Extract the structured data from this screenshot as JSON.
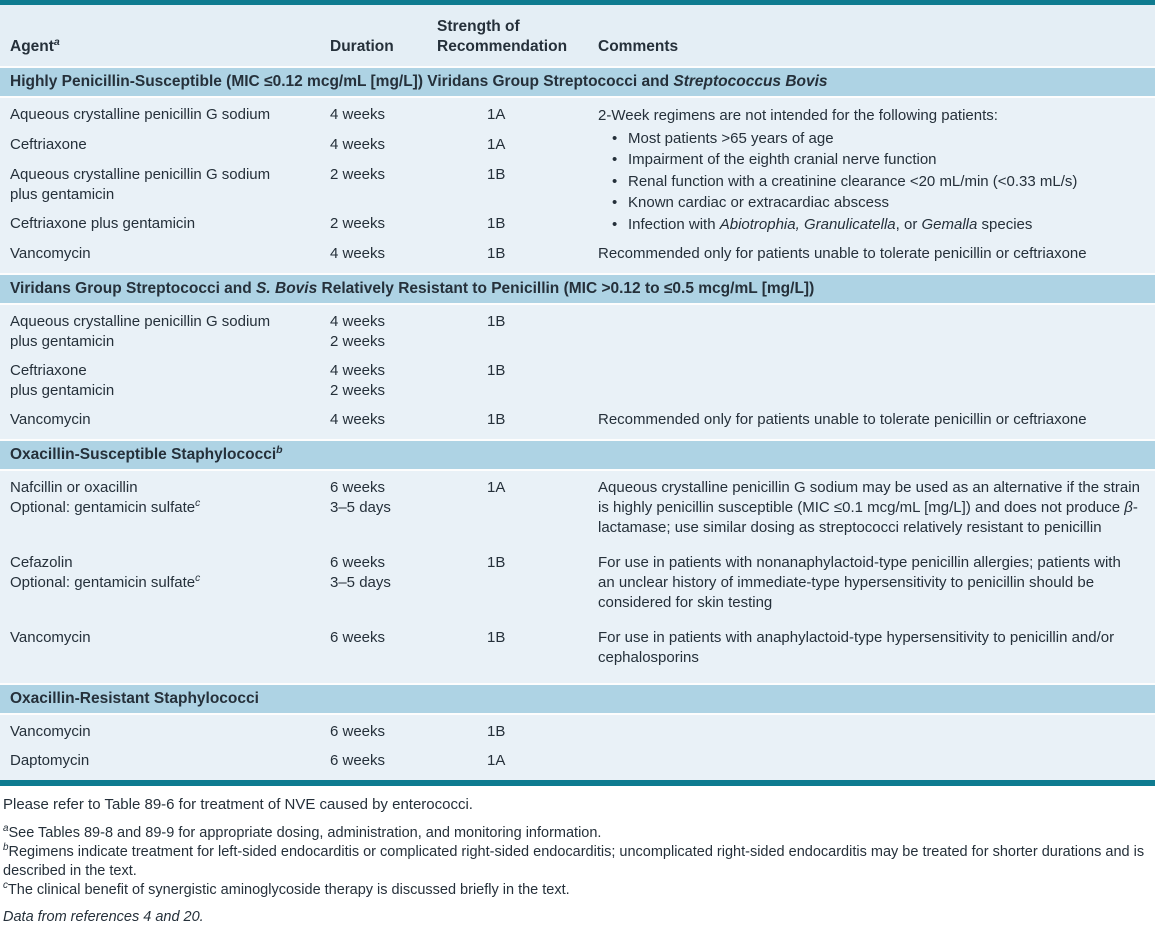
{
  "header": {
    "agent": [
      {
        "t": "Agent"
      },
      {
        "t": "a",
        "sup": true,
        "i": true
      }
    ],
    "duration": "Duration",
    "strength": [
      {
        "t": "Strength of"
      },
      {
        "br": true
      },
      {
        "t": "Recommendation"
      }
    ],
    "comments": "Comments"
  },
  "sections": [
    {
      "title": [
        {
          "t": "Highly Penicillin-Susceptible (MIC ≤0.12 mcg/mL [mg/L]) Viridans Group Streptococci and "
        },
        {
          "t": "Streptococcus Bovis",
          "i": true
        }
      ],
      "rows": [
        {
          "agent": "Aqueous crystalline penicillin G sodium",
          "duration": "4 weeks",
          "strength": "1A"
        },
        {
          "agent": "Ceftriaxone",
          "duration": "4 weeks",
          "strength": "1A"
        },
        {
          "agent": [
            {
              "t": "Aqueous crystalline penicillin G sodium"
            },
            {
              "br": true
            },
            {
              "t": "plus gentamicin"
            }
          ],
          "duration": "2 weeks",
          "strength": "1B"
        },
        {
          "agent": "Ceftriaxone plus gentamicin",
          "duration": "2 weeks",
          "strength": "1B"
        },
        {
          "agent": "Vancomycin",
          "duration": "4 weeks",
          "strength": "1B",
          "comment": "Recommended only for patients unable to tolerate penicillin or ceftriaxone"
        }
      ],
      "comment_block": {
        "intro": "2-Week regimens are not intended for the following patients:",
        "bullets": [
          "Most patients >65 years of age",
          "Impairment of the eighth cranial nerve function",
          "Renal function with a creatinine clearance <20 mL/min (<0.33 mL/s)",
          "Known cardiac or extracardiac abscess",
          [
            {
              "t": "Infection with "
            },
            {
              "t": "Abiotrophia, Granulicatella",
              "i": true
            },
            {
              "t": ", or "
            },
            {
              "t": "Gemalla",
              "i": true
            },
            {
              "t": " species"
            }
          ]
        ]
      }
    },
    {
      "title": [
        {
          "t": "Viridans Group Streptococci and "
        },
        {
          "t": "S. Bovis",
          "i": true
        },
        {
          "t": " Relatively Resistant to Penicillin (MIC >0.12 to ≤0.5 mcg/mL [mg/L])"
        }
      ],
      "rows": [
        {
          "agent": [
            {
              "t": "Aqueous crystalline penicillin G sodium"
            },
            {
              "br": true
            },
            {
              "t": "plus gentamicin"
            }
          ],
          "duration": [
            {
              "t": "4 weeks"
            },
            {
              "br": true
            },
            {
              "t": "2 weeks"
            }
          ],
          "strength": "1B"
        },
        {
          "agent": [
            {
              "t": "Ceftriaxone"
            },
            {
              "br": true
            },
            {
              "t": "plus gentamicin"
            }
          ],
          "duration": [
            {
              "t": "4 weeks"
            },
            {
              "br": true
            },
            {
              "t": "2 weeks"
            }
          ],
          "strength": "1B"
        },
        {
          "agent": "Vancomycin",
          "duration": "4 weeks",
          "strength": "1B",
          "comment": "Recommended only for patients unable to tolerate penicillin or ceftriaxone"
        }
      ]
    },
    {
      "title": [
        {
          "t": "Oxacillin-Susceptible Staphylococci"
        },
        {
          "t": "b",
          "sup": true,
          "i": true
        }
      ],
      "rows": [
        {
          "agent": [
            {
              "t": "Nafcillin or oxacillin"
            },
            {
              "br": true
            },
            {
              "t": "Optional: gentamicin sulfate"
            },
            {
              "t": "c",
              "sup": true,
              "i": true
            }
          ],
          "duration": [
            {
              "t": "6 weeks"
            },
            {
              "br": true
            },
            {
              "t": "3–5 days"
            }
          ],
          "strength": "1A",
          "comment": [
            {
              "t": "Aqueous crystalline penicillin G sodium may be used as an alternative if the strain is highly penicillin susceptible (MIC ≤0.1 mcg/mL [mg/L]) and does not produce "
            },
            {
              "t": "β",
              "i": true
            },
            {
              "t": "-lactamase; use similar dosing as streptococci relatively resistant to penicillin"
            }
          ]
        },
        {
          "agent": [
            {
              "t": "Cefazolin"
            },
            {
              "br": true
            },
            {
              "t": "Optional: gentamicin sulfate"
            },
            {
              "t": "c",
              "sup": true,
              "i": true
            }
          ],
          "duration": [
            {
              "t": "6 weeks"
            },
            {
              "br": true
            },
            {
              "t": "3–5 days"
            }
          ],
          "strength": "1B",
          "comment": "For use in patients with nonanaphylactoid-type penicillin allergies; patients with an unclear history of immediate-type hypersensitivity to penicillin should be considered for skin testing"
        },
        {
          "agent": "Vancomycin",
          "duration": "6 weeks",
          "strength": "1B",
          "comment": "For use in patients with anaphylactoid-type hypersensitivity to penicillin and/or cephalosporins"
        }
      ]
    },
    {
      "title": [
        {
          "t": "Oxacillin-Resistant Staphylococci"
        }
      ],
      "rows": [
        {
          "agent": "Vancomycin",
          "duration": "6 weeks",
          "strength": "1B"
        },
        {
          "agent": "Daptomycin",
          "duration": "6 weeks",
          "strength": "1A"
        }
      ]
    }
  ],
  "footnotes": {
    "main": "Please refer to Table 89-6 for treatment of NVE caused by enterococci.",
    "a": [
      {
        "t": "a",
        "sup": true,
        "i": true
      },
      {
        "t": "See Tables 89-8 and 89-9 for appropriate dosing, administration, and monitoring information."
      }
    ],
    "b": [
      {
        "t": "b",
        "sup": true,
        "i": true
      },
      {
        "t": "Regimens indicate treatment for left-sided endocarditis or complicated right-sided endocarditis; uncomplicated right-sided endocarditis may be treated for shorter durations and is described in the text."
      }
    ],
    "c": [
      {
        "t": "c",
        "sup": true,
        "i": true
      },
      {
        "t": "The clinical benefit of synergistic aminoglycoside therapy is discussed briefly in the text."
      }
    ],
    "data_source": "Data from references 4 and 20."
  },
  "colors": {
    "rule_teal": "#0e7b90",
    "band_blue": "#aed3e4",
    "body_blue": "#e9f1f7",
    "header_blue": "#e4eef5",
    "text": "#25303a"
  }
}
